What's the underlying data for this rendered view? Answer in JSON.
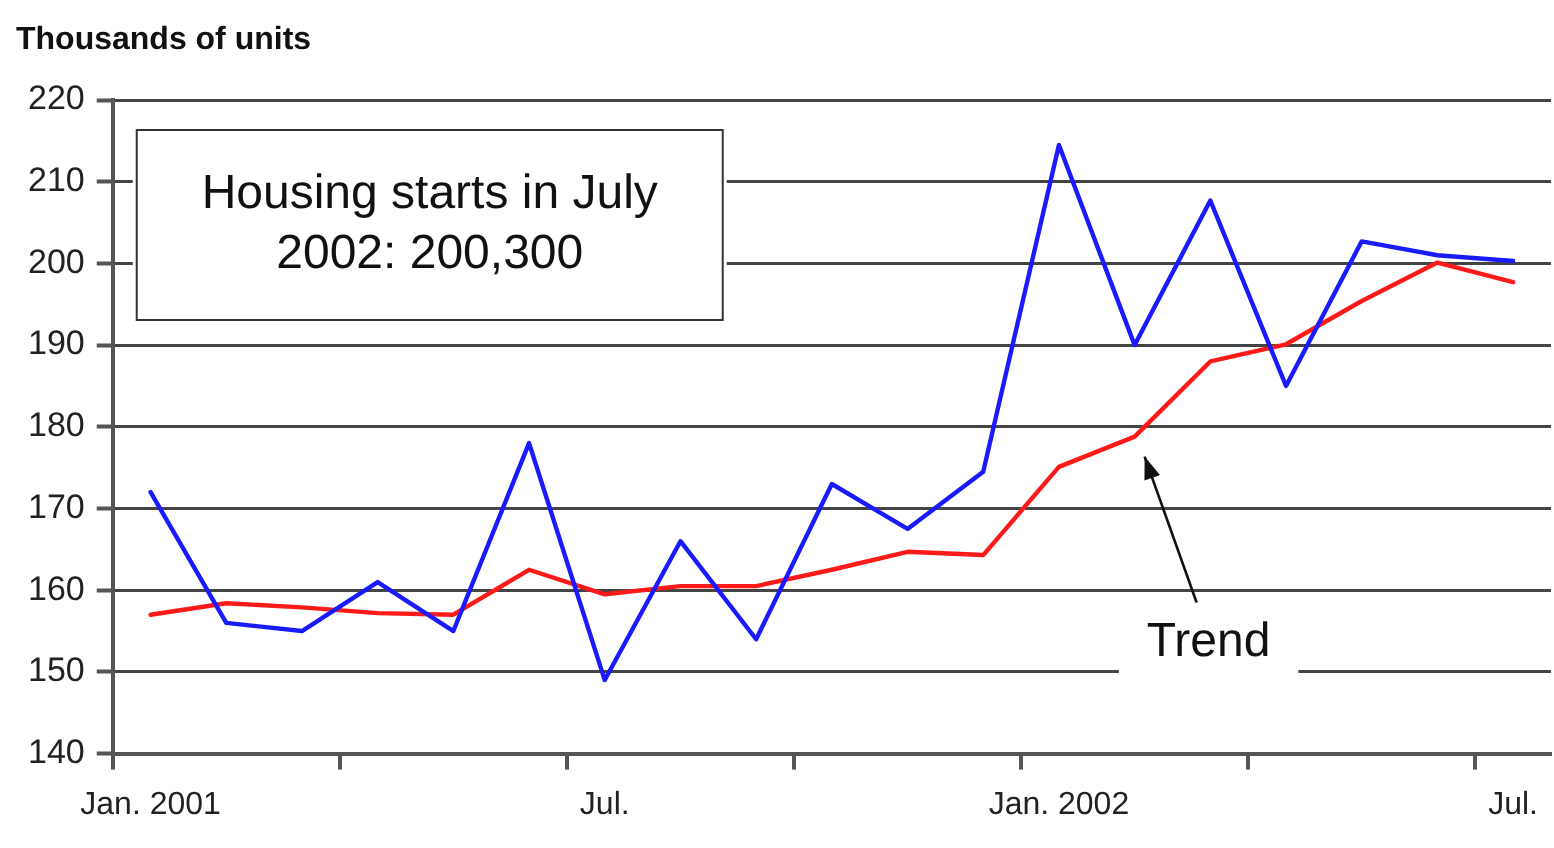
{
  "chart_data": {
    "type": "line",
    "ylabel": "Thousands of units",
    "categories": [
      "Jan. 2001",
      null,
      null,
      null,
      null,
      null,
      "Jul.",
      null,
      null,
      null,
      null,
      null,
      "Jan. 2002",
      null,
      null,
      null,
      null,
      null,
      "Jul."
    ],
    "series": [
      {
        "color": "#1a1aff",
        "values": [
          172,
          156,
          155,
          161,
          155,
          178,
          149,
          166,
          154,
          173,
          167.5,
          174.5,
          214.5,
          190,
          207.7,
          185,
          202.7,
          201,
          200.3
        ]
      },
      {
        "name": "Trend",
        "color": "#ff1a1a",
        "values": [
          157,
          158.4,
          157.9,
          157.2,
          157,
          162.5,
          159.5,
          160.5,
          160.5,
          162.5,
          164.7,
          164.3,
          175.1,
          178.8,
          188,
          190.1,
          195.4,
          200.1,
          197.7
        ]
      }
    ],
    "ylim": [
      140,
      220
    ],
    "yticks": [
      140,
      150,
      160,
      170,
      180,
      190,
      200,
      210,
      220
    ],
    "grid": "y",
    "marker": "none",
    "line_style": "solid",
    "annotations": [
      "Housing starts in July 2002: 200,300"
    ]
  }
}
